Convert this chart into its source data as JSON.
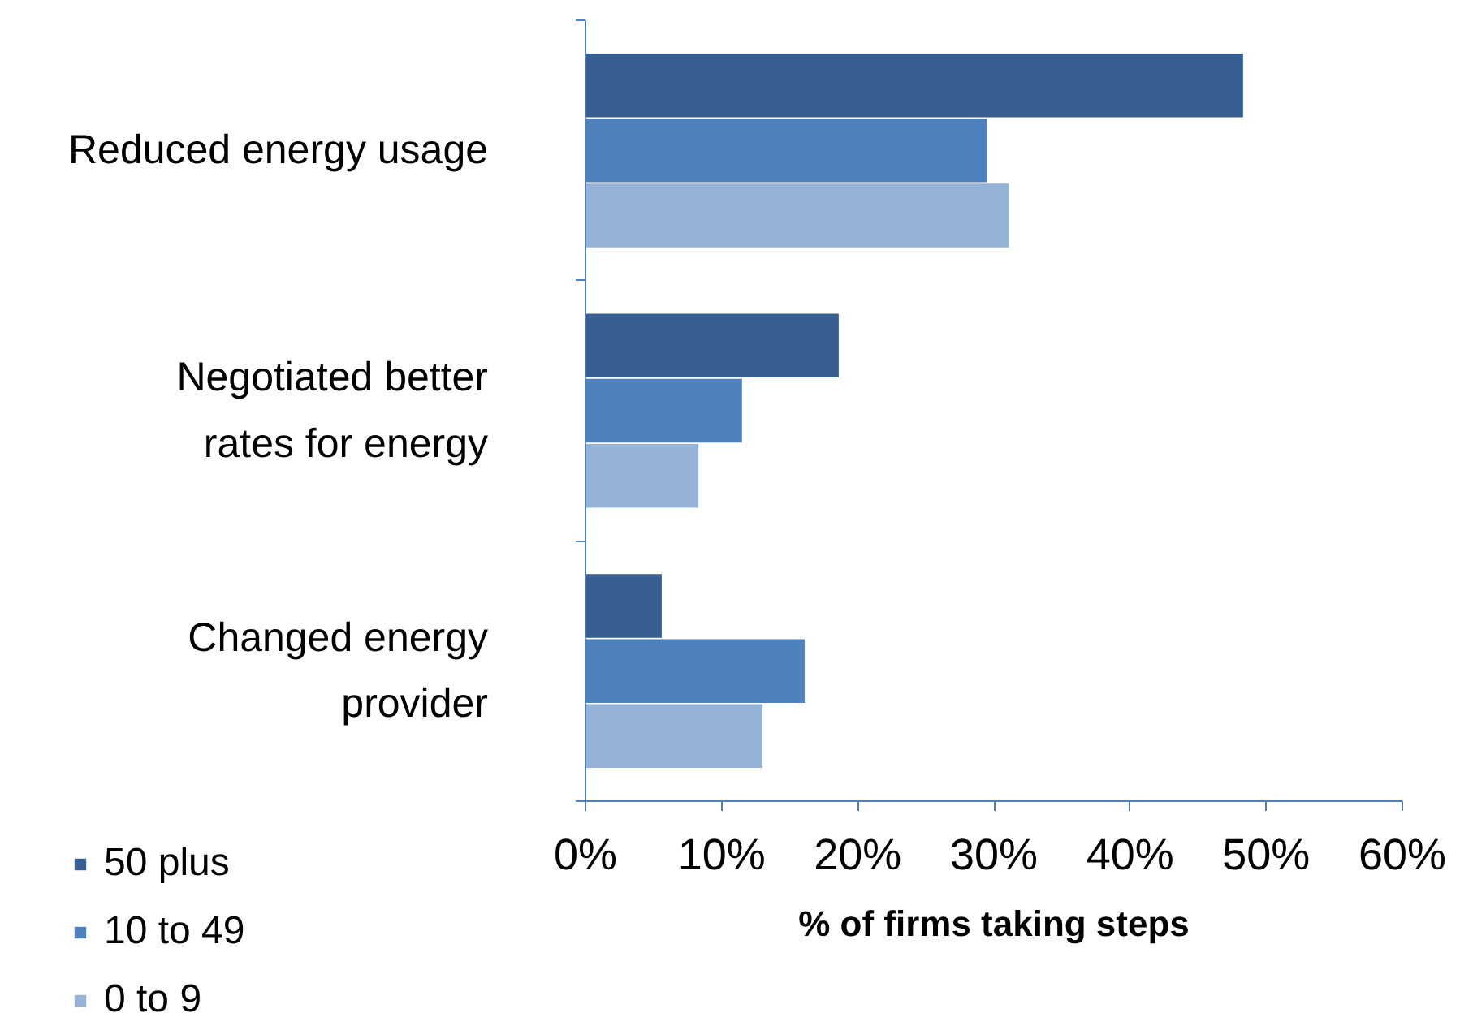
{
  "chart_data": {
    "type": "bar",
    "orientation": "horizontal",
    "xlabel": "% of firms taking steps",
    "categories": [
      "Reduced energy usage",
      "Negotiated better rates for energy",
      "Changed energy provider"
    ],
    "series": [
      {
        "name": "50 plus",
        "color": "#375f91",
        "values": [
          48.3,
          18.6,
          5.6
        ]
      },
      {
        "name": "10 to 49",
        "color": "#4f81bd",
        "values": [
          29.5,
          11.5,
          16.1
        ]
      },
      {
        "name": "0 to 9",
        "color": "#95b3d7",
        "values": [
          31.1,
          8.3,
          13.0
        ]
      }
    ],
    "xlim": [
      0,
      60
    ],
    "xticks": [
      {
        "value": 0,
        "label": "0%"
      },
      {
        "value": 10,
        "label": "10%"
      },
      {
        "value": 20,
        "label": "20%"
      },
      {
        "value": 30,
        "label": "30%"
      },
      {
        "value": 40,
        "label": "40%"
      },
      {
        "value": 50,
        "label": "50%"
      },
      {
        "value": 60,
        "label": "60%"
      }
    ],
    "grid": false,
    "legend": "bottom left"
  }
}
